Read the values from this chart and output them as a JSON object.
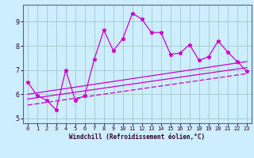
{
  "xlabel": "Windchill (Refroidissement éolien,°C)",
  "background_color": "#cceeff",
  "grid_color": "#aacccc",
  "line_color": "#cc00cc",
  "spine_color": "#556688",
  "xlim": [
    -0.5,
    23.5
  ],
  "ylim": [
    4.8,
    9.7
  ],
  "yticks": [
    5,
    6,
    7,
    8,
    9
  ],
  "xticks": [
    0,
    1,
    2,
    3,
    4,
    5,
    6,
    7,
    8,
    9,
    10,
    11,
    12,
    13,
    14,
    15,
    16,
    17,
    18,
    19,
    20,
    21,
    22,
    23
  ],
  "main_x": [
    0,
    1,
    2,
    3,
    4,
    5,
    6,
    7,
    8,
    9,
    10,
    11,
    12,
    13,
    14,
    15,
    16,
    17,
    18,
    19,
    20,
    21,
    22,
    23
  ],
  "main_y": [
    6.5,
    5.95,
    5.75,
    5.35,
    7.0,
    5.75,
    5.95,
    7.45,
    8.65,
    7.8,
    8.3,
    9.35,
    9.1,
    8.55,
    8.55,
    7.65,
    7.7,
    8.05,
    7.4,
    7.55,
    8.2,
    7.75,
    7.35,
    6.95
  ],
  "line1_x": [
    0,
    23
  ],
  "line1_y": [
    6.0,
    7.35
  ],
  "line2_x": [
    0,
    23
  ],
  "line2_y": [
    5.8,
    7.1
  ],
  "line3_x": [
    0,
    23
  ],
  "line3_y": [
    5.55,
    6.85
  ]
}
